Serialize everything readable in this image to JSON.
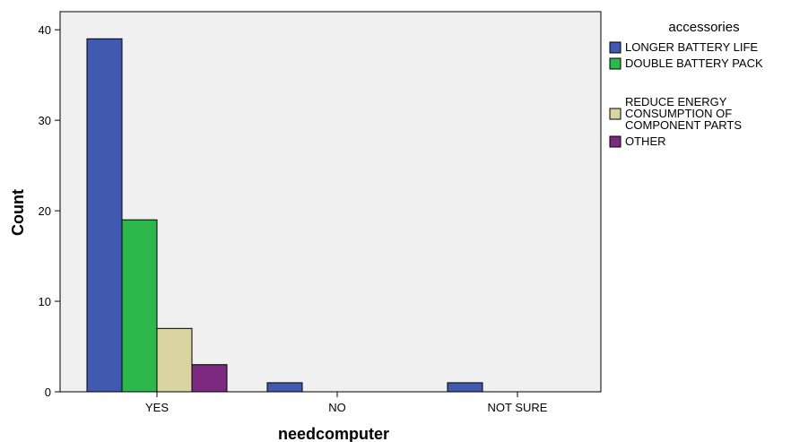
{
  "chart_data": {
    "type": "bar",
    "xlabel": "needcomputer",
    "ylabel": "Count",
    "categories": [
      "YES",
      "NO",
      "NOT SURE"
    ],
    "ylim": [
      0,
      42
    ],
    "yticks": [
      0,
      10,
      20,
      30,
      40
    ],
    "grid": false,
    "legend": {
      "title": "accessories",
      "placement": "right",
      "entries": [
        {
          "name": "LONGER BATTERY LIFE",
          "lines": [
            "LONGER BATTERY LIFE"
          ]
        },
        {
          "name": "DOUBLE BATTERY PACK",
          "lines": [
            "DOUBLE BATTERY PACK"
          ]
        },
        {
          "name": "REDUCE ENERGY CONSUMPTION OF COMPONENT PARTS",
          "lines": [
            "REDUCE ENERGY",
            "CONSUMPTION OF",
            "COMPONENT PARTS"
          ]
        },
        {
          "name": "OTHER",
          "lines": [
            "OTHER"
          ]
        }
      ]
    },
    "series": [
      {
        "name": "LONGER BATTERY LIFE",
        "color": "#3f5aae",
        "values": [
          39,
          1,
          1
        ]
      },
      {
        "name": "DOUBLE BATTERY PACK",
        "color": "#2db84b",
        "values": [
          19,
          0,
          0
        ]
      },
      {
        "name": "REDUCE ENERGY CONSUMPTION OF COMPONENT PARTS",
        "color": "#d9d4a0",
        "values": [
          7,
          0,
          0
        ]
      },
      {
        "name": "OTHER",
        "color": "#7b2a80",
        "values": [
          3,
          0,
          0
        ]
      }
    ],
    "plot_background": "#f0f0f0"
  }
}
